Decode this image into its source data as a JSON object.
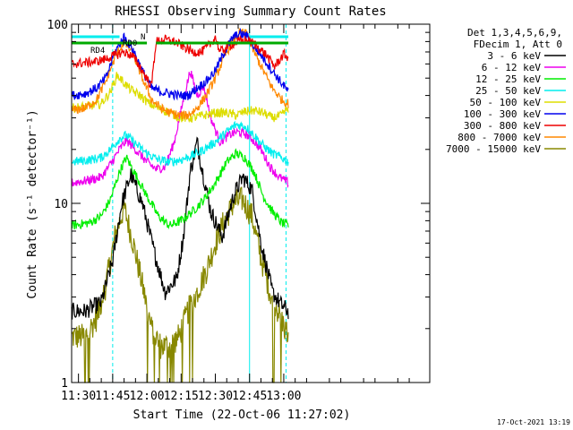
{
  "chart_data": {
    "type": "line",
    "title": "RHESSI Observing Summary Count Rates",
    "xlabel": "Start Time (22-Oct-06 11:27:02)",
    "ylabel": "Count Rate (s⁻¹ detector⁻¹)",
    "yscale": "log",
    "ylim": [
      1,
      100
    ],
    "xlim_minutes": [
      27,
      184
    ],
    "x_ticks": [
      {
        "label": "11:30",
        "minutes": 30
      },
      {
        "label": "11:45",
        "minutes": 45
      },
      {
        "label": "12:00",
        "minutes": 60
      },
      {
        "label": "12:15",
        "minutes": 75
      },
      {
        "label": "12:30",
        "minutes": 90
      },
      {
        "label": "12:45",
        "minutes": 105
      },
      {
        "label": "13:00",
        "minutes": 120
      }
    ],
    "y_tick_labels": [
      {
        "label": "1",
        "value": 1
      },
      {
        "label": "10",
        "value": 10
      },
      {
        "label": "100",
        "value": 100
      }
    ],
    "legend_header": [
      "Det 1,3,4,5,6,9,",
      "FDecim 1, Att 0"
    ],
    "legend_position": "right",
    "series": [
      {
        "name": "3 - 6 keV",
        "color": "#000000",
        "x": [
          27,
          33,
          40,
          45,
          49,
          53,
          58,
          63,
          68,
          73,
          76,
          79,
          82,
          84,
          88,
          93,
          98,
          102,
          106,
          110,
          115,
          119,
          122
        ],
        "values": [
          2.5,
          2.5,
          2.8,
          4.8,
          10,
          14.5,
          10,
          5.5,
          3.2,
          3.8,
          6.5,
          15,
          22,
          16,
          9,
          6.5,
          11,
          14,
          12,
          6,
          3.2,
          2.7,
          2.5
        ]
      },
      {
        "name": "6 - 12 keV",
        "color": "#ee00ee",
        "x": [
          27,
          35,
          40,
          44,
          48,
          51,
          55,
          60,
          64,
          68,
          72,
          76,
          79,
          82,
          85,
          88,
          92,
          96,
          99,
          103,
          106,
          110,
          114,
          118,
          122
        ],
        "values": [
          13,
          13.5,
          14,
          16.5,
          20,
          22.5,
          20,
          17,
          15.5,
          16,
          22,
          38,
          55,
          40,
          45,
          30,
          22,
          24,
          25,
          24.5,
          23,
          20,
          16,
          14,
          13
        ]
      },
      {
        "name": "12 - 25 keV",
        "color": "#00ee00",
        "x": [
          27,
          35,
          40,
          44,
          48,
          51,
          55,
          60,
          65,
          70,
          75,
          80,
          85,
          90,
          95,
          99,
          103,
          107,
          111,
          115,
          119,
          122
        ],
        "values": [
          7.5,
          7.8,
          8.5,
          10.5,
          15,
          18,
          14.5,
          11,
          8.5,
          7.5,
          8,
          9,
          10.5,
          13,
          17,
          19,
          18,
          15,
          11,
          9,
          7.8,
          7.5
        ]
      },
      {
        "name": "25 - 50 keV",
        "color": "#00eeee",
        "x": [
          27,
          35,
          40,
          44,
          48,
          51,
          55,
          60,
          65,
          70,
          75,
          80,
          85,
          90,
          95,
          99,
          103,
          107,
          111,
          115,
          119,
          122
        ],
        "values": [
          17,
          17.5,
          18,
          20,
          23,
          24,
          21.5,
          19,
          17.5,
          17,
          17.5,
          18.5,
          20,
          22,
          25,
          27.5,
          27,
          24,
          21,
          19,
          18,
          17
        ]
      },
      {
        "name": "50 - 100 keV",
        "color": "#dddd00",
        "x": [
          27,
          35,
          40,
          44,
          47,
          50,
          53,
          57,
          61,
          65,
          70,
          75,
          80,
          85,
          90,
          95,
          99,
          103,
          107,
          111,
          115,
          119,
          122
        ],
        "values": [
          34,
          35,
          36,
          42,
          52,
          47,
          43,
          40,
          36,
          34,
          32,
          30,
          30,
          31,
          32,
          32,
          31,
          32.5,
          33,
          32,
          30,
          31,
          34
        ]
      },
      {
        "name": "100 - 300 keV",
        "color": "#0000ee",
        "x": [
          27,
          33,
          38,
          42,
          46,
          50,
          54,
          58,
          62,
          66,
          70,
          74,
          78,
          82,
          86,
          90,
          94,
          98,
          101,
          104,
          107,
          111,
          115,
          119,
          122
        ],
        "values": [
          40,
          41,
          44,
          50,
          70,
          85,
          72,
          55,
          44,
          42,
          41,
          40,
          40,
          44,
          48,
          55,
          70,
          85,
          88,
          86,
          75,
          65,
          55,
          47,
          42
        ]
      },
      {
        "name": "300 - 800 keV",
        "color": "#ee0000",
        "x": [
          27,
          33,
          38,
          42,
          46,
          50,
          54,
          58,
          62,
          64,
          68,
          72,
          76,
          80,
          84,
          88,
          90,
          92,
          96,
          100,
          104,
          108,
          112,
          116,
          120,
          122
        ],
        "values": [
          60,
          61,
          62,
          64,
          67,
          70,
          66,
          55,
          45,
          80,
          82,
          80,
          75,
          70,
          70,
          78,
          85,
          70,
          76,
          80,
          82,
          76,
          68,
          58,
          68,
          65
        ]
      },
      {
        "name": "800 - 7000 keV",
        "color": "#ff8800",
        "x": [
          27,
          33,
          38,
          42,
          46,
          50,
          54,
          58,
          62,
          66,
          70,
          74,
          78,
          82,
          86,
          90,
          94,
          98,
          101,
          104,
          107,
          111,
          115,
          119,
          122
        ],
        "values": [
          33,
          34,
          38,
          48,
          65,
          80,
          68,
          50,
          38,
          34,
          32,
          31,
          31,
          34,
          40,
          50,
          66,
          82,
          90,
          88,
          70,
          55,
          44,
          38,
          36
        ]
      },
      {
        "name": "7000 - 15000 keV",
        "color": "#888800",
        "x": [
          27,
          33,
          38,
          42,
          46,
          50,
          54,
          58,
          62,
          66,
          70,
          74,
          78,
          82,
          86,
          90,
          94,
          98,
          102,
          106,
          110,
          114,
          118,
          122
        ],
        "values": [
          1.8,
          1.8,
          2.3,
          3.5,
          6.5,
          9.5,
          6,
          3.5,
          2,
          1.6,
          1.6,
          1.8,
          2.5,
          3.2,
          4.2,
          6,
          8,
          10,
          10.5,
          8.5,
          5,
          3.2,
          2.4,
          1.8
        ]
      }
    ],
    "flag_bars": [
      {
        "label": "N",
        "color": "#00eeee",
        "segments": [
          [
            27,
            48
          ],
          [
            105,
            122
          ]
        ]
      },
      {
        "label": "RD0",
        "color": "#00aa00",
        "segments": [
          [
            27,
            60
          ],
          [
            64,
            122
          ]
        ]
      },
      {
        "label": "RD4",
        "color": "#00aa00",
        "segments": []
      }
    ],
    "vertical_markers": [
      {
        "minutes": 27,
        "style": "solid",
        "color": "#00eeee"
      },
      {
        "minutes": 45,
        "style": "dashed",
        "color": "#00eeee"
      },
      {
        "minutes": 105,
        "style": "solid",
        "color": "#00eeee"
      },
      {
        "minutes": 121,
        "style": "dashed",
        "color": "#00eeee"
      }
    ],
    "timestamp": "17-Oct-2021 13:19"
  }
}
